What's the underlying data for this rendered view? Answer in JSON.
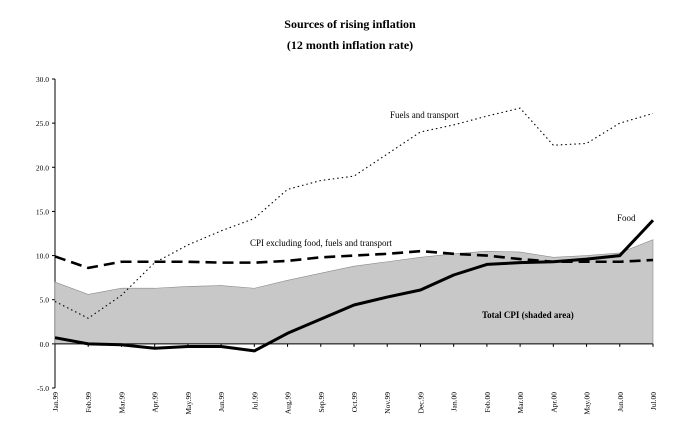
{
  "chart_data": {
    "type": "line",
    "title": "Sources of rising inflation",
    "subtitle": "(12 month inflation rate)",
    "xlabel": "",
    "ylabel": "",
    "ylim": [
      -5,
      30
    ],
    "yticks": [
      "30.0",
      "25.0",
      "20.0",
      "15.0",
      "10.0",
      "5.0",
      "0.0",
      "-5.0"
    ],
    "grid": false,
    "legend": "none",
    "categories": [
      "Jan.99",
      "Feb.99",
      "Mar.99",
      "Apr.99",
      "May.99",
      "Jun.99",
      "Jul.99",
      "Aug.99",
      "Sep.99",
      "Oct.99",
      "Nov.99",
      "Dec.99",
      "Jan.00",
      "Feb.00",
      "Mar.00",
      "Apr.00",
      "May.00",
      "Jun.00",
      "Jul.00"
    ],
    "series": [
      {
        "name": "Total CPI (shaded area)",
        "style": "area",
        "color": "#c8c8c8",
        "values": [
          7.0,
          5.6,
          6.3,
          6.3,
          6.5,
          6.6,
          6.3,
          7.2,
          8.0,
          8.8,
          9.3,
          9.8,
          10.2,
          10.5,
          10.4,
          9.8,
          10.0,
          10.3,
          11.8
        ]
      },
      {
        "name": "CPI excluding food, fuels and transport",
        "style": "dashed",
        "values": [
          9.9,
          8.6,
          9.3,
          9.3,
          9.3,
          9.2,
          9.2,
          9.4,
          9.8,
          10.0,
          10.2,
          10.5,
          10.2,
          10.0,
          9.6,
          9.3,
          9.3,
          9.3,
          9.5
        ]
      },
      {
        "name": "Fuels and transport",
        "style": "dotted",
        "values": [
          4.8,
          2.9,
          5.5,
          9.2,
          11.2,
          12.8,
          14.2,
          17.5,
          18.5,
          19.0,
          21.5,
          24.0,
          24.8,
          25.8,
          26.7,
          22.5,
          22.7,
          25.0,
          26.1
        ]
      },
      {
        "name": "Food",
        "style": "thick",
        "values": [
          0.7,
          0.0,
          -0.1,
          -0.5,
          -0.3,
          -0.3,
          -0.8,
          1.2,
          2.8,
          4.4,
          5.3,
          6.1,
          7.8,
          9.0,
          9.2,
          9.3,
          9.6,
          10.0,
          14.0
        ]
      }
    ],
    "annotations": {
      "fuels": "Fuels and transport",
      "core": "CPI excluding food, fuels and transport",
      "food": "Food",
      "total": "Total CPI (shaded area)"
    }
  }
}
